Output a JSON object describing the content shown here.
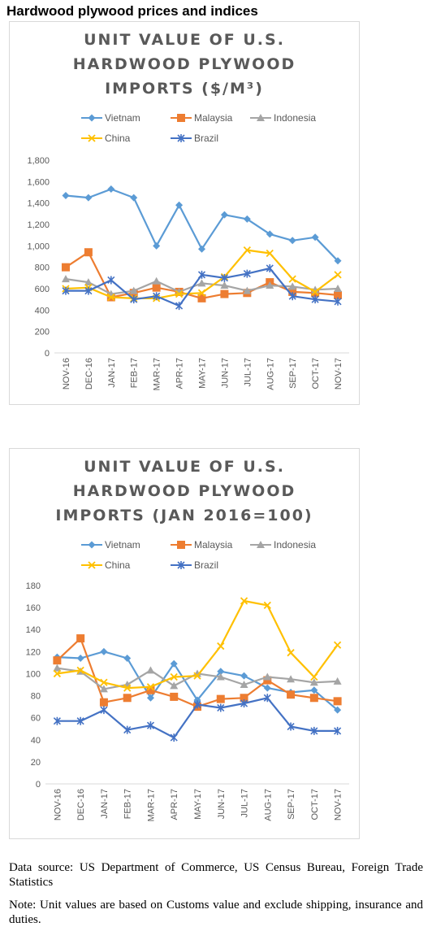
{
  "page_title": "Hardwood plywood prices and indices",
  "legend_icons": {
    "Vietnam": "diamond-marker",
    "Malaysia": "square-marker",
    "Indonesia": "triangle-marker",
    "China": "x-marker",
    "Brazil": "asterisk-marker"
  },
  "chart_data": [
    {
      "type": "line",
      "title_lines": [
        "UNIT VALUE OF U.S.",
        "HARDWOOD PLYWOOD",
        "IMPORTS ($/M³)"
      ],
      "categories": [
        "NOV-16",
        "DEC-16",
        "JAN-17",
        "FEB-17",
        "MAR-17",
        "APR-17",
        "MAY-17",
        "JUN-17",
        "JUL-17",
        "AUG-17",
        "SEP-17",
        "OCT-17",
        "NOV-17"
      ],
      "ylim": [
        0,
        1800
      ],
      "yticks": [
        0,
        200,
        400,
        600,
        800,
        1000,
        1200,
        1400,
        1600,
        1800
      ],
      "ytick_labels": [
        "0",
        "200",
        "400",
        "600",
        "800",
        "1,000",
        "1,200",
        "1,400",
        "1,600",
        "1,800"
      ],
      "grid": false,
      "legend_position": "top",
      "series": [
        {
          "name": "Vietnam",
          "color": "#5b9bd5",
          "marker": "diamond",
          "values": [
            1470,
            1450,
            1530,
            1450,
            1000,
            1380,
            970,
            1290,
            1250,
            1110,
            1050,
            1080,
            860
          ]
        },
        {
          "name": "Malaysia",
          "color": "#ed7d31",
          "marker": "square",
          "values": [
            800,
            940,
            520,
            560,
            610,
            570,
            510,
            550,
            560,
            660,
            570,
            560,
            540
          ]
        },
        {
          "name": "Indonesia",
          "color": "#a5a5a5",
          "marker": "triangle",
          "values": [
            690,
            660,
            550,
            580,
            670,
            570,
            650,
            630,
            580,
            630,
            620,
            590,
            600
          ]
        },
        {
          "name": "China",
          "color": "#ffc000",
          "marker": "x",
          "values": [
            600,
            610,
            520,
            510,
            510,
            550,
            560,
            710,
            960,
            930,
            690,
            570,
            730
          ]
        },
        {
          "name": "Brazil",
          "color": "#4472c4",
          "marker": "asterisk",
          "values": [
            580,
            580,
            680,
            500,
            530,
            440,
            730,
            700,
            740,
            790,
            530,
            500,
            480
          ]
        }
      ]
    },
    {
      "type": "line",
      "title_lines": [
        "UNIT VALUE OF U.S.",
        "HARDWOOD PLYWOOD",
        "IMPORTS (JAN 2016=100)"
      ],
      "categories": [
        "NOV-16",
        "DEC-16",
        "JAN-17",
        "FEB-17",
        "MAR-17",
        "APR-17",
        "MAY-17",
        "JUN-17",
        "JUL-17",
        "AUG-17",
        "SEP-17",
        "OCT-17",
        "NOV-17"
      ],
      "ylim": [
        0,
        180
      ],
      "yticks": [
        0,
        20,
        40,
        60,
        80,
        100,
        120,
        140,
        160,
        180
      ],
      "ytick_labels": [
        "0",
        "20",
        "40",
        "60",
        "80",
        "100",
        "120",
        "140",
        "160",
        "180"
      ],
      "grid": false,
      "legend_position": "top",
      "series": [
        {
          "name": "Vietnam",
          "color": "#5b9bd5",
          "marker": "diamond",
          "values": [
            115,
            114,
            120,
            114,
            78,
            109,
            76,
            102,
            98,
            87,
            83,
            85,
            67
          ]
        },
        {
          "name": "Malaysia",
          "color": "#ed7d31",
          "marker": "square",
          "values": [
            112,
            132,
            74,
            78,
            85,
            79,
            70,
            77,
            78,
            94,
            81,
            78,
            75
          ]
        },
        {
          "name": "Indonesia",
          "color": "#a5a5a5",
          "marker": "triangle",
          "values": [
            105,
            102,
            86,
            90,
            103,
            89,
            100,
            97,
            90,
            97,
            95,
            92,
            93
          ]
        },
        {
          "name": "China",
          "color": "#ffc000",
          "marker": "x",
          "values": [
            100,
            103,
            92,
            87,
            88,
            97,
            98,
            125,
            166,
            162,
            119,
            97,
            126
          ]
        },
        {
          "name": "Brazil",
          "color": "#4472c4",
          "marker": "asterisk",
          "values": [
            57,
            57,
            67,
            49,
            53,
            42,
            72,
            69,
            73,
            78,
            52,
            48,
            48
          ]
        }
      ]
    }
  ],
  "footnotes": {
    "source": "Data source: US Department of Commerce, US Census Bureau, Foreign Trade Statistics",
    "note": "Note: Unit values are based on Customs value and exclude shipping, insurance and duties."
  }
}
